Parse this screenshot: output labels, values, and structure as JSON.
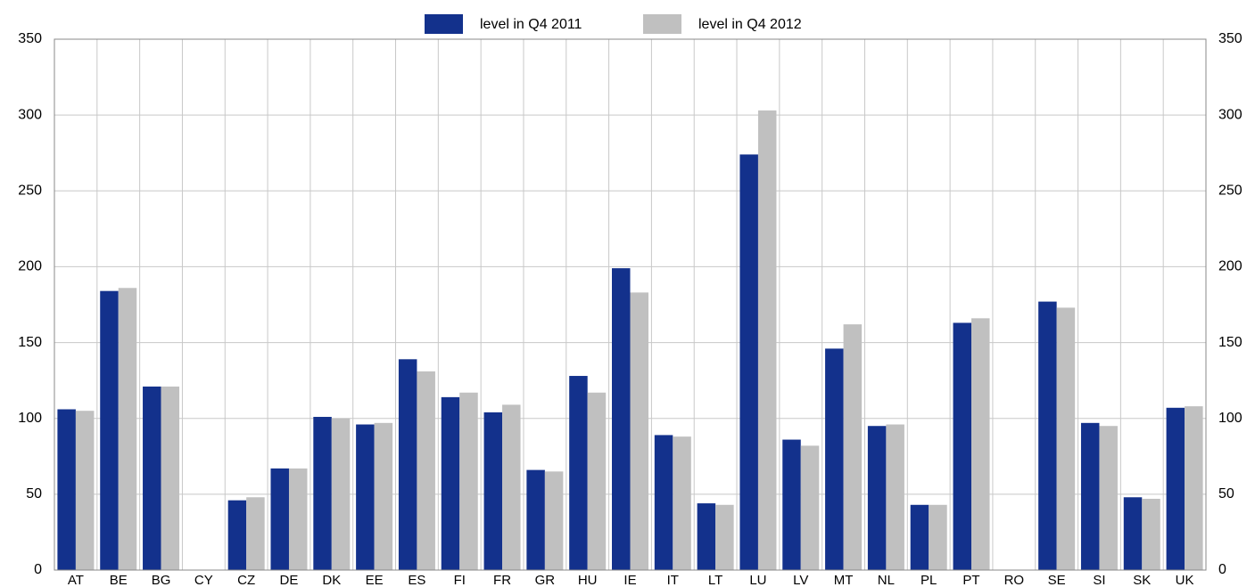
{
  "chart_data": {
    "type": "bar",
    "categories": [
      "AT",
      "BE",
      "BG",
      "CY",
      "CZ",
      "DE",
      "DK",
      "EE",
      "ES",
      "FI",
      "FR",
      "GR",
      "HU",
      "IE",
      "IT",
      "LT",
      "LU",
      "LV",
      "MT",
      "NL",
      "PL",
      "PT",
      "RO",
      "SE",
      "SI",
      "SK",
      "UK"
    ],
    "series": [
      {
        "name": "level in Q4 2011",
        "color": "#13318c",
        "values": [
          106,
          184,
          121,
          null,
          46,
          67,
          101,
          96,
          139,
          114,
          104,
          66,
          128,
          199,
          89,
          44,
          274,
          86,
          146,
          95,
          43,
          163,
          null,
          177,
          97,
          48,
          107
        ]
      },
      {
        "name": "level in Q4 2012",
        "color": "#c0c0c0",
        "values": [
          105,
          186,
          121,
          null,
          48,
          67,
          100,
          97,
          131,
          117,
          109,
          65,
          117,
          183,
          88,
          43,
          303,
          82,
          162,
          96,
          43,
          166,
          null,
          173,
          95,
          47,
          108
        ]
      }
    ],
    "ylim": [
      0,
      350
    ],
    "yticks": [
      0,
      50,
      100,
      150,
      200,
      250,
      300,
      350
    ],
    "grid": true,
    "legend": "top"
  }
}
